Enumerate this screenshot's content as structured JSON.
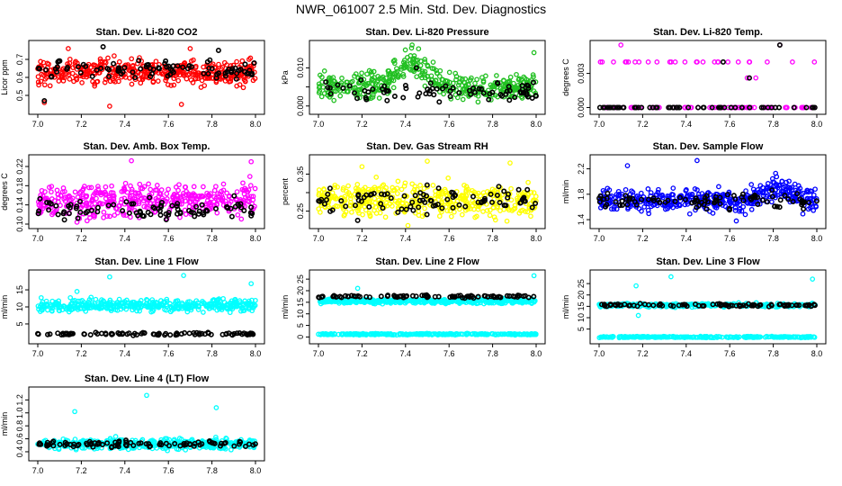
{
  "title": "NWR_061007  2.5 Min. Std. Dev. Diagnostics",
  "colors": {
    "red": "#ff0000",
    "green": "#22c022",
    "magenta": "#ff00ff",
    "yellow": "#ffff00",
    "blue": "#0000ff",
    "cyan": "#00ffff",
    "black": "#000000"
  },
  "chart_data": [
    {
      "type": "scatter",
      "title": "Stan. Dev. Li-820 CO2",
      "ylabel": "Licor ppm",
      "xlim": [
        7.0,
        8.0
      ],
      "ylim": [
        0.42,
        0.78
      ],
      "xticks": [
        "7.0",
        "7.2",
        "7.4",
        "7.6",
        "7.8",
        "8.0"
      ],
      "yticks": [
        0.5,
        0.6,
        0.7
      ],
      "ytick_labels": [
        "0.5",
        "0.6",
        "0.7"
      ],
      "series": [
        {
          "name": "main",
          "color": "red",
          "base": 0.63,
          "spread": 0.07,
          "n": 420,
          "outliers": [
            [
              7.14,
              0.76
            ],
            [
              7.33,
              0.44
            ],
            [
              7.7,
              0.76
            ],
            [
              7.66,
              0.45
            ],
            [
              7.03,
              0.46
            ]
          ]
        },
        {
          "name": "reference",
          "color": "black",
          "base": 0.64,
          "spread": 0.05,
          "n": 90,
          "outliers": [
            [
              7.3,
              0.77
            ],
            [
              7.83,
              0.75
            ],
            [
              7.03,
              0.47
            ]
          ]
        }
      ]
    },
    {
      "type": "scatter",
      "title": "Stan. Dev. Li-820 Pressure",
      "ylabel": "kPa",
      "xlim": [
        7.0,
        8.0
      ],
      "ylim": [
        -0.001,
        0.016
      ],
      "xticks": [
        "7.0",
        "7.2",
        "7.4",
        "7.6",
        "7.8",
        "8.0"
      ],
      "yticks": [
        0.0,
        0.005,
        0.01
      ],
      "ytick_labels": [
        "0.000",
        "",
        "0.010"
      ],
      "series": [
        {
          "name": "main",
          "color": "green",
          "base": 0.005,
          "spread": 0.0035,
          "n": 420,
          "hump": 0.006,
          "hump_center": 7.43,
          "hump_width": 0.1,
          "outliers": [
            [
              7.43,
              0.016
            ],
            [
              7.46,
              0.015
            ],
            [
              7.99,
              0.014
            ],
            [
              7.35,
              0.012
            ]
          ]
        },
        {
          "name": "reference",
          "color": "black",
          "base": 0.004,
          "spread": 0.003,
          "n": 80,
          "outliers": [
            [
              7.45,
              0.01
            ]
          ]
        }
      ]
    },
    {
      "type": "scatter",
      "title": "Stan. Dev. Li-820 Temp.",
      "ylabel": "degrees C",
      "xlim": [
        7.0,
        8.0
      ],
      "ylim": [
        -0.0002,
        0.0055
      ],
      "xticks": [
        "7.0",
        "7.2",
        "7.4",
        "7.6",
        "7.8",
        "8.0"
      ],
      "yticks": [
        0.0,
        0.003
      ],
      "ytick_labels": [
        "0.000",
        "0.003"
      ],
      "series": [
        {
          "name": "main",
          "color": "magenta",
          "mode": "levels",
          "levels": [
            0.0,
            0.004
          ],
          "n": 150,
          "outliers": [
            [
              7.1,
              0.0055
            ],
            [
              7.68,
              0.0026
            ],
            [
              7.72,
              0.0026
            ],
            [
              7.83,
              0.0055
            ]
          ]
        },
        {
          "name": "reference",
          "color": "black",
          "mode": "levels",
          "levels": [
            0.0
          ],
          "n": 60,
          "outliers": [
            [
              7.83,
              0.0055
            ],
            [
              7.69,
              0.0026
            ],
            [
              7.57,
              0.004
            ]
          ]
        }
      ]
    },
    {
      "type": "scatter",
      "title": "Stan. Dev. Amb. Box Temp.",
      "ylabel": "degrees C",
      "xlim": [
        7.0,
        8.0
      ],
      "ylim": [
        0.1,
        0.235
      ],
      "xticks": [
        "7.0",
        "7.2",
        "7.4",
        "7.6",
        "7.8",
        "8.0"
      ],
      "yticks": [
        0.1,
        0.14,
        0.18,
        0.22
      ],
      "ytick_labels": [
        "0.10",
        "0.14",
        "0.18",
        "0.22"
      ],
      "series": [
        {
          "name": "main",
          "color": "magenta",
          "base": 0.15,
          "spread": 0.035,
          "n": 420,
          "outliers": [
            [
              7.43,
              0.232
            ],
            [
              7.98,
              0.23
            ],
            [
              7.18,
              0.104
            ]
          ]
        },
        {
          "name": "reference",
          "color": "black",
          "base": 0.13,
          "spread": 0.02,
          "n": 90,
          "outliers": []
        }
      ]
    },
    {
      "type": "scatter",
      "title": "Stan. Dev. Gas Stream RH",
      "ylabel": "percent",
      "xlim": [
        7.0,
        8.0
      ],
      "ylim": [
        0.215,
        0.39
      ],
      "xticks": [
        "7.0",
        "7.2",
        "7.4",
        "7.6",
        "7.8",
        "8.0"
      ],
      "yticks": [
        0.25,
        0.3,
        0.35
      ],
      "ytick_labels": [
        "0.25",
        "",
        "0.35"
      ],
      "series": [
        {
          "name": "main",
          "color": "yellow",
          "base": 0.28,
          "spread": 0.045,
          "n": 420,
          "outliers": [
            [
              7.5,
              0.385
            ],
            [
              7.88,
              0.38
            ],
            [
              7.2,
              0.37
            ]
          ]
        },
        {
          "name": "reference",
          "color": "black",
          "base": 0.28,
          "spread": 0.035,
          "n": 90,
          "outliers": [
            [
              7.18,
              0.225
            ]
          ]
        }
      ]
    },
    {
      "type": "scatter",
      "title": "Stan. Dev. Sample Flow",
      "ylabel": "ml/min",
      "xlim": [
        7.0,
        8.0
      ],
      "ylim": [
        1.33,
        2.35
      ],
      "xticks": [
        "7.0",
        "7.2",
        "7.4",
        "7.6",
        "7.8",
        "8.0"
      ],
      "yticks": [
        1.4,
        1.8,
        2.2
      ],
      "ytick_labels": [
        "1.4",
        "1.8",
        "2.2"
      ],
      "series": [
        {
          "name": "main",
          "color": "blue",
          "base": 1.7,
          "spread": 0.18,
          "n": 420,
          "hump": 0.2,
          "hump_center": 7.82,
          "hump_width": 0.1,
          "outliers": [
            [
              7.45,
              2.33
            ],
            [
              7.13,
              2.25
            ],
            [
              7.63,
              1.38
            ]
          ]
        },
        {
          "name": "reference",
          "color": "black",
          "base": 1.7,
          "spread": 0.12,
          "n": 90,
          "outliers": []
        }
      ]
    },
    {
      "type": "scatter",
      "title": "Stan. Dev. Line 1 Flow",
      "ylabel": "ml/min",
      "xlim": [
        7.0,
        8.0
      ],
      "ylim": [
        0.5,
        19.5
      ],
      "xticks": [
        "7.0",
        "7.2",
        "7.4",
        "7.6",
        "7.8",
        "8.0"
      ],
      "yticks": [
        5,
        10,
        15
      ],
      "ytick_labels": [
        "5",
        "10",
        "15"
      ],
      "series": [
        {
          "name": "main",
          "color": "cyan",
          "base": 10.5,
          "spread": 1.8,
          "n": 420,
          "outliers": [
            [
              7.33,
              18.8
            ],
            [
              7.67,
              19.2
            ],
            [
              7.98,
              16.8
            ],
            [
              7.18,
              14.5
            ]
          ]
        },
        {
          "name": "reference",
          "color": "black",
          "base": 2.1,
          "spread": 0.4,
          "n": 90,
          "outliers": []
        }
      ]
    },
    {
      "type": "scatter",
      "title": "Stan. Dev. Line 2 Flow",
      "ylabel": "ml/min",
      "xlim": [
        7.0,
        8.0
      ],
      "ylim": [
        -1,
        27
      ],
      "xticks": [
        "7.0",
        "7.2",
        "7.4",
        "7.6",
        "7.8",
        "8.0"
      ],
      "yticks": [
        0,
        5,
        10,
        15,
        20,
        25
      ],
      "ytick_labels": [
        "0",
        "5",
        "10",
        "15",
        "20",
        "25"
      ],
      "series": [
        {
          "name": "main",
          "color": "cyan",
          "base": 15.5,
          "spread": 1.0,
          "n": 420,
          "outliers": [
            [
              7.18,
              21
            ],
            [
              7.99,
              26.5
            ]
          ]
        },
        {
          "name": "low",
          "color": "cyan",
          "base": 1.2,
          "spread": 0.3,
          "n": 300,
          "outliers": []
        },
        {
          "name": "reference",
          "color": "black",
          "base": 17.5,
          "spread": 0.6,
          "n": 90,
          "outliers": []
        }
      ]
    },
    {
      "type": "scatter",
      "title": "Stan. Dev. Line 3 Flow",
      "ylabel": "ml/min",
      "xlim": [
        7.0,
        8.0
      ],
      "ylim": [
        0.5,
        29
      ],
      "xticks": [
        "7.0",
        "7.2",
        "7.4",
        "7.6",
        "7.8",
        "8.0"
      ],
      "yticks": [
        5,
        10,
        15,
        20,
        25
      ],
      "ytick_labels": [
        "5",
        "10",
        "15",
        "20",
        "25"
      ],
      "series": [
        {
          "name": "main",
          "color": "cyan",
          "base": 15.5,
          "spread": 0.8,
          "n": 300,
          "outliers": [
            [
              7.33,
              28
            ],
            [
              7.98,
              27
            ],
            [
              7.17,
              24
            ],
            [
              7.18,
              11
            ]
          ]
        },
        {
          "name": "low",
          "color": "cyan",
          "base": 1.5,
          "spread": 0.3,
          "n": 300,
          "outliers": []
        },
        {
          "name": "reference",
          "color": "black",
          "base": 15.5,
          "spread": 0.6,
          "n": 90,
          "outliers": []
        }
      ]
    },
    {
      "type": "scatter",
      "title": "Stan. Dev. Line 4 (LT) Flow",
      "ylabel": "ml/min",
      "xlim": [
        7.0,
        8.0
      ],
      "ylim": [
        0.33,
        1.33
      ],
      "xticks": [
        "7.0",
        "7.2",
        "7.4",
        "7.6",
        "7.8",
        "8.0"
      ],
      "yticks": [
        0.4,
        0.6,
        0.8,
        1.0,
        1.2
      ],
      "ytick_labels": [
        "0.4",
        "0.6",
        "0.8",
        "1.0",
        "1.2"
      ],
      "series": [
        {
          "name": "main",
          "color": "cyan",
          "base": 0.52,
          "spread": 0.08,
          "n": 420,
          "outliers": [
            [
              7.5,
              1.27
            ],
            [
              7.17,
              1.02
            ],
            [
              7.82,
              1.08
            ]
          ]
        },
        {
          "name": "reference",
          "color": "black",
          "base": 0.52,
          "spread": 0.05,
          "n": 90,
          "outliers": []
        }
      ]
    }
  ]
}
